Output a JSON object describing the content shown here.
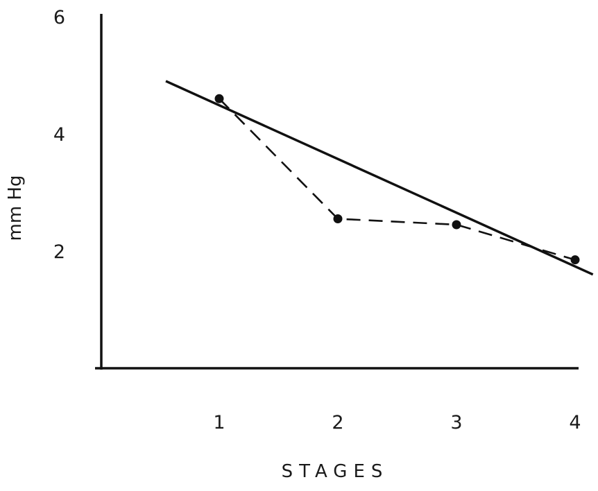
{
  "chart_data": {
    "type": "line",
    "title": "",
    "xlabel": "STAGES",
    "ylabel": "mm Hg",
    "x_ticks": [
      "1",
      "2",
      "3",
      "4"
    ],
    "y_ticks": [
      "2",
      "4",
      "6"
    ],
    "xlim": [
      0,
      4.1
    ],
    "ylim": [
      0,
      6
    ],
    "grid": false,
    "legend": "none",
    "series": [
      {
        "style": "dashed-with-markers",
        "x": [
          1,
          2,
          3,
          4
        ],
        "y": [
          4.6,
          2.55,
          2.45,
          1.85
        ]
      },
      {
        "style": "solid-trend-line",
        "x": [
          0.55,
          4.15
        ],
        "y": [
          4.9,
          1.6
        ]
      }
    ]
  }
}
